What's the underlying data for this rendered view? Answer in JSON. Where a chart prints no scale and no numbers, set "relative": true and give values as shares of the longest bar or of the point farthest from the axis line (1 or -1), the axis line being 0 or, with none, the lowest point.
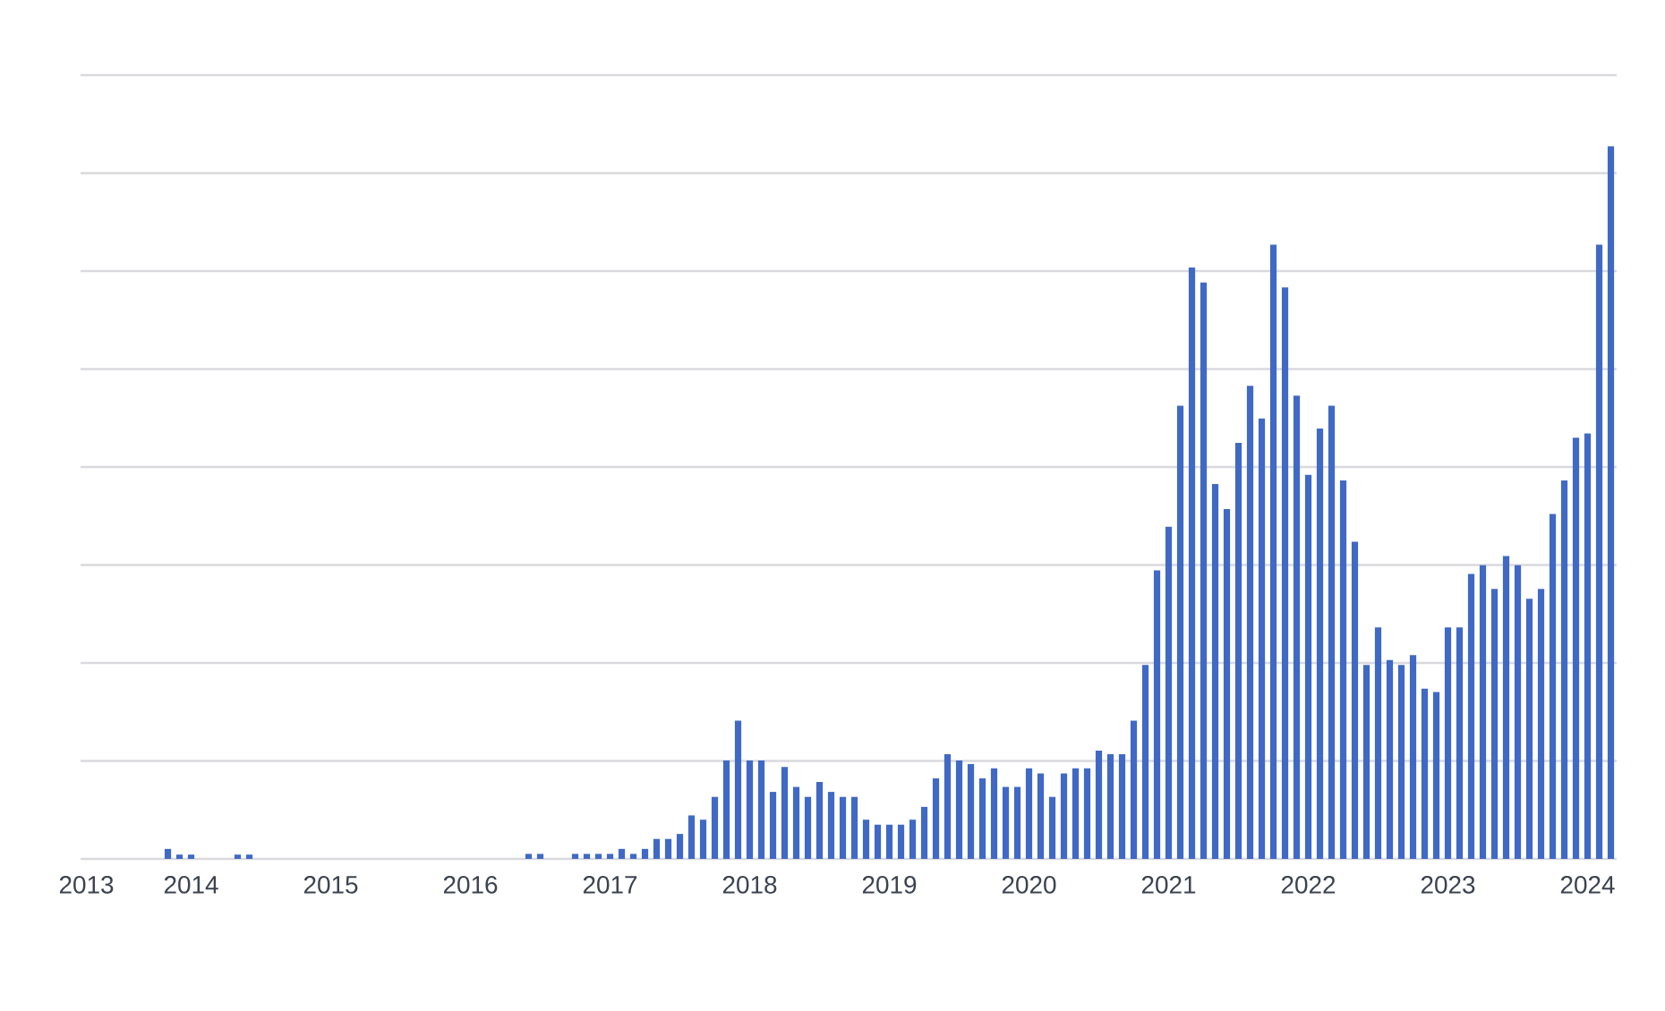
{
  "chart_data": {
    "type": "bar",
    "relative": true,
    "grid": "y",
    "color": "#3f69c5",
    "categories": [
      "2013",
      null,
      null,
      null,
      null,
      null,
      null,
      null,
      null,
      "2014",
      null,
      null,
      null,
      null,
      null,
      null,
      null,
      null,
      null,
      null,
      null,
      "2015",
      null,
      null,
      null,
      null,
      null,
      null,
      null,
      null,
      null,
      null,
      null,
      "2016",
      null,
      null,
      null,
      null,
      null,
      null,
      null,
      null,
      null,
      null,
      null,
      "2017",
      null,
      null,
      null,
      null,
      null,
      null,
      null,
      null,
      null,
      null,
      null,
      "2018",
      null,
      null,
      null,
      null,
      null,
      null,
      null,
      null,
      null,
      null,
      null,
      "2019",
      null,
      null,
      null,
      null,
      null,
      null,
      null,
      null,
      null,
      null,
      null,
      "2020",
      null,
      null,
      null,
      null,
      null,
      null,
      null,
      null,
      null,
      null,
      null,
      "2021",
      null,
      null,
      null,
      null,
      null,
      null,
      null,
      null,
      null,
      null,
      null,
      "2022",
      null,
      null,
      null,
      null,
      null,
      null,
      null,
      null,
      null,
      null,
      null,
      "2023",
      null,
      null,
      null,
      null,
      null,
      null,
      null,
      null,
      null,
      null,
      null,
      "2024",
      null,
      null
    ],
    "values": [
      0,
      0,
      0,
      0,
      0,
      0,
      0,
      0.014,
      0.006,
      0.006,
      0,
      0,
      0,
      0.006,
      0.006,
      0,
      0,
      0,
      0,
      0,
      0,
      0,
      0,
      0,
      0,
      0,
      0,
      0,
      0,
      0,
      0,
      0,
      0,
      0,
      0,
      0,
      0,
      0,
      0.007,
      0.007,
      0,
      0,
      0.007,
      0.007,
      0.007,
      0.007,
      0.014,
      0.007,
      0.014,
      0.028,
      0.028,
      0.035,
      0.061,
      0.055,
      0.087,
      0.138,
      0.194,
      0.138,
      0.138,
      0.094,
      0.129,
      0.101,
      0.087,
      0.108,
      0.094,
      0.087,
      0.087,
      0.055,
      0.048,
      0.048,
      0.048,
      0.055,
      0.073,
      0.113,
      0.147,
      0.138,
      0.133,
      0.113,
      0.127,
      0.101,
      0.101,
      0.127,
      0.12,
      0.087,
      0.12,
      0.127,
      0.127,
      0.152,
      0.147,
      0.147,
      0.194,
      0.272,
      0.405,
      0.466,
      0.636,
      0.83,
      0.809,
      0.526,
      0.491,
      0.584,
      0.664,
      0.618,
      0.862,
      0.802,
      0.65,
      0.539,
      0.604,
      0.636,
      0.531,
      0.445,
      0.272,
      0.325,
      0.279,
      0.272,
      0.286,
      0.239,
      0.234,
      0.325,
      0.325,
      0.4,
      0.412,
      0.379,
      0.425,
      0.412,
      0.365,
      0.379,
      0.484,
      0.531,
      0.591,
      0.597,
      0.862,
      1
    ]
  }
}
